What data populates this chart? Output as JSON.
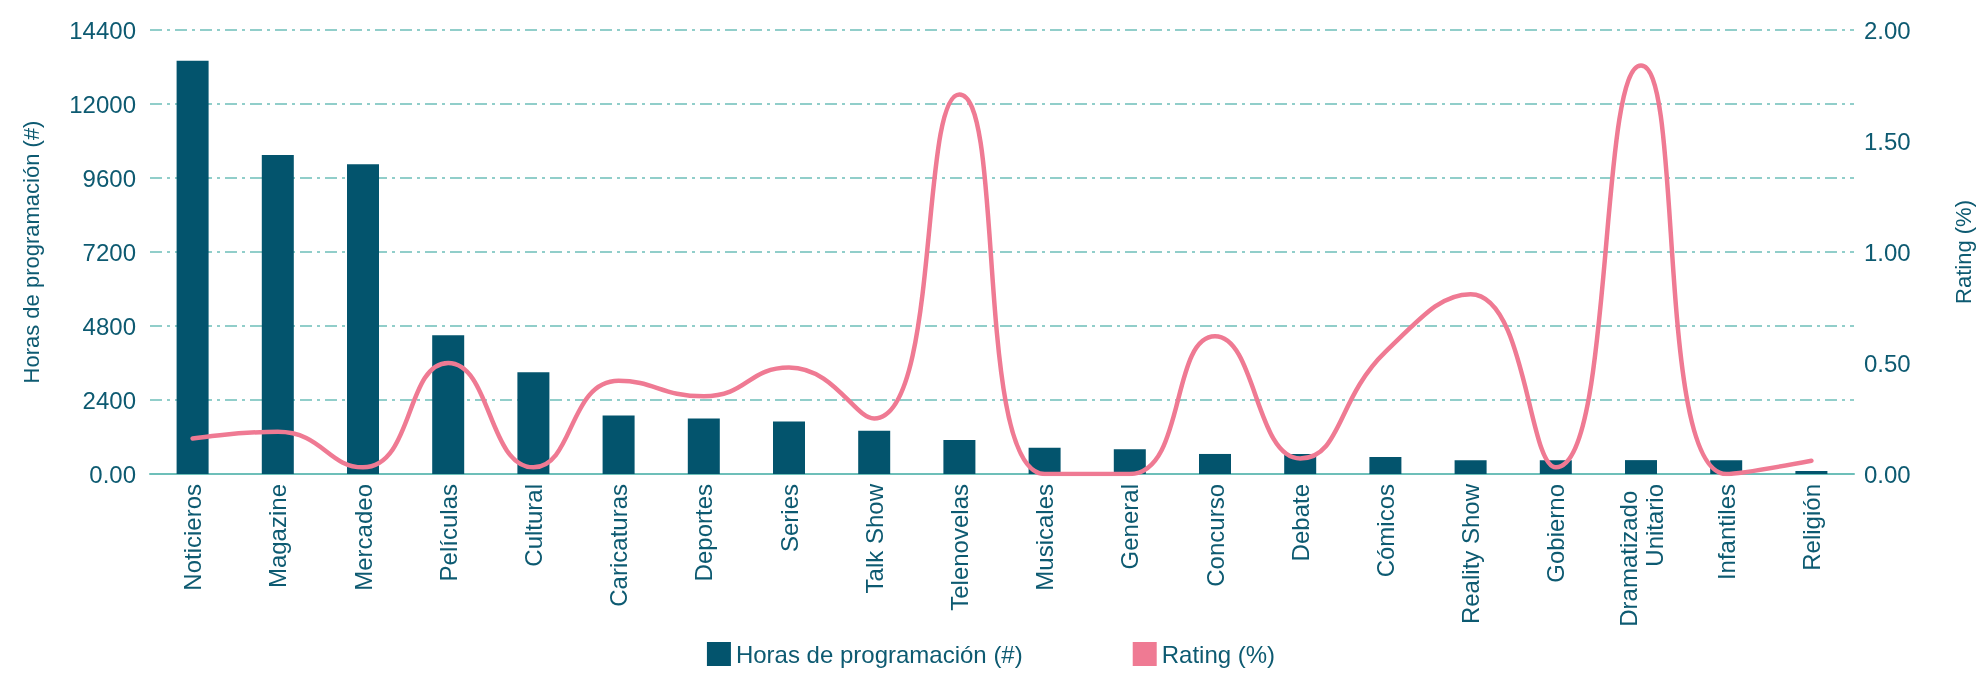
{
  "chart_data": {
    "type": "bar",
    "categories": [
      "Noticieros",
      "Magazine",
      "Mercadeo",
      "Películas",
      "Cultural",
      "Caricaturas",
      "Deportes",
      "Series",
      "Talk Show",
      "Telenovelas",
      "Musicales",
      "General",
      "Concurso",
      "Debate",
      "Cómicos",
      "Reality Show",
      "Gobierno",
      "Dramatizado Unitario",
      "Infantiles",
      "Religión"
    ],
    "series": [
      {
        "name": "Horas de programación (#)",
        "color": "#03546d",
        "values": [
          13400,
          10350,
          10050,
          4500,
          3300,
          1900,
          1800,
          1700,
          1400,
          1100,
          850,
          800,
          650,
          650,
          550,
          450,
          450,
          450,
          450,
          100
        ]
      },
      {
        "name": "Rating (%)",
        "type": "line",
        "axis": "y2",
        "color": "#ef7a93",
        "values": [
          0.16,
          0.19,
          0.03,
          0.5,
          0.03,
          0.42,
          0.35,
          0.48,
          0.25,
          1.71,
          0,
          0,
          0.62,
          0.07,
          0.55,
          0.81,
          0.03,
          1.84,
          0,
          0.06
        ]
      }
    ],
    "ylabel": "Horas de programación (#)",
    "y2label": "Rating (%)",
    "ylim": [
      0,
      14400
    ],
    "yticks": [
      {
        "value": 0,
        "label": "0.00"
      },
      2400,
      4800,
      7200,
      9600,
      12000,
      14400
    ],
    "y2lim": [
      0,
      2
    ],
    "y2ticks": [
      {
        "value": 0,
        "label": "0.00"
      },
      {
        "value": 0.5,
        "label": "0.50"
      },
      {
        "value": 1,
        "label": "1.00"
      },
      {
        "value": 1.5,
        "label": "1.50"
      },
      {
        "value": 2,
        "label": "2.00"
      }
    ],
    "grid": "y",
    "legend": "bottom",
    "marker": "none"
  }
}
